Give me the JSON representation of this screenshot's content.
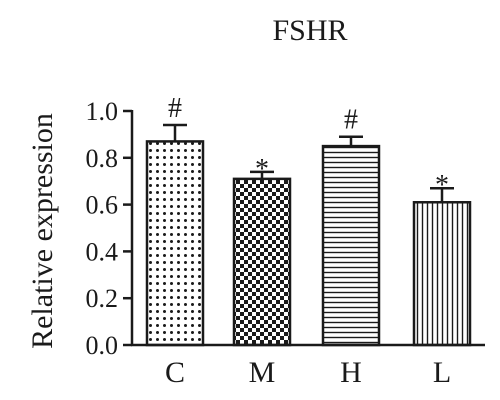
{
  "chart_data": {
    "type": "bar",
    "title": "FSHR",
    "xlabel": "",
    "ylabel": "Relative expression",
    "ylim": [
      0,
      1.0
    ],
    "yticks": [
      "0.0",
      "0.2",
      "0.4",
      "0.6",
      "0.8",
      "1.0"
    ],
    "categories": [
      "C",
      "M",
      "H",
      "L"
    ],
    "values": [
      0.87,
      0.71,
      0.85,
      0.61
    ],
    "errors": [
      0.07,
      0.03,
      0.04,
      0.06
    ],
    "significance": [
      "#",
      "*",
      "#",
      "*"
    ],
    "fill_patterns": [
      "dots",
      "checkerboard",
      "horizontal-lines",
      "vertical-lines"
    ],
    "colors": {
      "ink": "#1a1a1a",
      "background": "#ffffff"
    },
    "grid": false,
    "legend": "none"
  }
}
